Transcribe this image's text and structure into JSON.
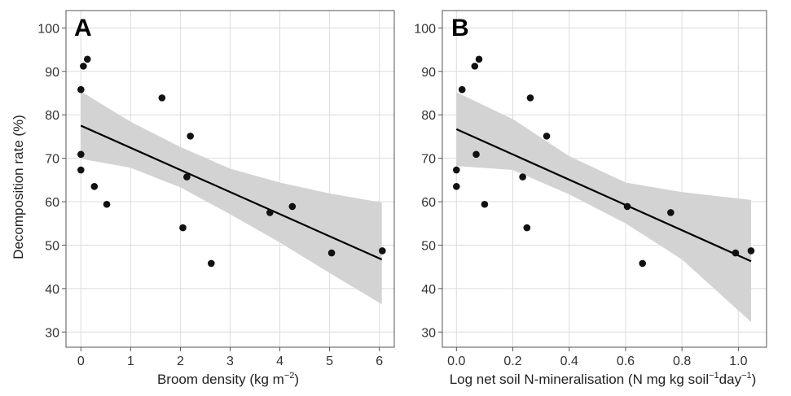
{
  "colors": {
    "points": "#111111",
    "fit_line": "#000000",
    "ribbon": "#d3d3d3",
    "grid": "#dcdcdc"
  },
  "chart_data": [
    {
      "type": "scatter",
      "panel_label": "A",
      "xlabel": "Broom density (kg m",
      "xlabel_sup": "−2",
      "xlabel_end": ")",
      "ylabel": "Decomposition rate (%)",
      "xlim": [
        -0.3,
        6.3
      ],
      "ylim": [
        26.5,
        104
      ],
      "xticks": [
        0,
        1,
        2,
        3,
        4,
        5,
        6
      ],
      "xtick_labels": [
        "0",
        "1",
        "2",
        "3",
        "4",
        "5",
        "6"
      ],
      "yticks": [
        30,
        40,
        50,
        60,
        70,
        80,
        90,
        100
      ],
      "ytick_labels": [
        "30",
        "40",
        "50",
        "60",
        "70",
        "80",
        "90",
        "100"
      ],
      "grid": true,
      "points": [
        {
          "x": 0.0,
          "y": 85.8
        },
        {
          "x": 0.05,
          "y": 91.2
        },
        {
          "x": 0.13,
          "y": 92.8
        },
        {
          "x": 0.0,
          "y": 70.9
        },
        {
          "x": 0.0,
          "y": 67.3
        },
        {
          "x": 0.27,
          "y": 63.5
        },
        {
          "x": 0.52,
          "y": 59.4
        },
        {
          "x": 1.63,
          "y": 83.9
        },
        {
          "x": 2.2,
          "y": 75.1
        },
        {
          "x": 2.13,
          "y": 65.7
        },
        {
          "x": 2.05,
          "y": 54.0
        },
        {
          "x": 2.62,
          "y": 45.8
        },
        {
          "x": 3.8,
          "y": 57.5
        },
        {
          "x": 4.25,
          "y": 58.9
        },
        {
          "x": 5.04,
          "y": 48.2
        },
        {
          "x": 6.06,
          "y": 48.7
        }
      ],
      "fit": {
        "x": [
          0,
          6.05
        ],
        "y": [
          77.5,
          46.7
        ]
      },
      "ci": {
        "x": [
          0,
          1,
          2,
          3,
          4,
          5,
          6.05
        ],
        "lower": [
          69.9,
          67.8,
          63.3,
          57.1,
          50.6,
          43.6,
          36.4
        ],
        "upper": [
          85.4,
          78.4,
          72.6,
          67.6,
          64.4,
          61.9,
          59.8
        ]
      }
    },
    {
      "type": "scatter",
      "panel_label": "B",
      "xlabel": "Log net soil N-mineralisation (N mg kg soil",
      "xlabel_sup": "−1",
      "xlabel_mid": "day",
      "xlabel_sup2": "−1",
      "xlabel_end": ")",
      "ylabel": "",
      "xlim": [
        -0.05,
        1.1
      ],
      "ylim": [
        26.5,
        104
      ],
      "xticks": [
        0.0,
        0.2,
        0.4,
        0.6,
        0.8,
        1.0
      ],
      "xtick_labels": [
        "0.0",
        "0.2",
        "0.4",
        "0.6",
        "0.8",
        "1.0"
      ],
      "yticks": [
        30,
        40,
        50,
        60,
        70,
        80,
        90,
        100
      ],
      "ytick_labels": [
        "30",
        "40",
        "50",
        "60",
        "70",
        "80",
        "90",
        "100"
      ],
      "grid": true,
      "points": [
        {
          "x": 0.0,
          "y": 67.3
        },
        {
          "x": 0.0,
          "y": 63.5
        },
        {
          "x": 0.02,
          "y": 85.8
        },
        {
          "x": 0.065,
          "y": 91.2
        },
        {
          "x": 0.08,
          "y": 92.8
        },
        {
          "x": 0.07,
          "y": 70.9
        },
        {
          "x": 0.1,
          "y": 59.4
        },
        {
          "x": 0.235,
          "y": 65.7
        },
        {
          "x": 0.25,
          "y": 54.0
        },
        {
          "x": 0.262,
          "y": 83.9
        },
        {
          "x": 0.32,
          "y": 75.1
        },
        {
          "x": 0.606,
          "y": 58.9
        },
        {
          "x": 0.66,
          "y": 45.8
        },
        {
          "x": 0.76,
          "y": 57.5
        },
        {
          "x": 0.99,
          "y": 48.2
        },
        {
          "x": 1.045,
          "y": 48.7
        }
      ],
      "fit": {
        "x": [
          0,
          1.045
        ],
        "y": [
          76.7,
          46.3
        ]
      },
      "ci": {
        "x": [
          0,
          0.2,
          0.4,
          0.6,
          0.8,
          1.045
        ],
        "lower": [
          68.2,
          67.3,
          61.7,
          55.0,
          46.7,
          32.3
        ],
        "upper": [
          85.2,
          79.0,
          70.5,
          64.4,
          62.2,
          60.4
        ]
      }
    }
  ]
}
